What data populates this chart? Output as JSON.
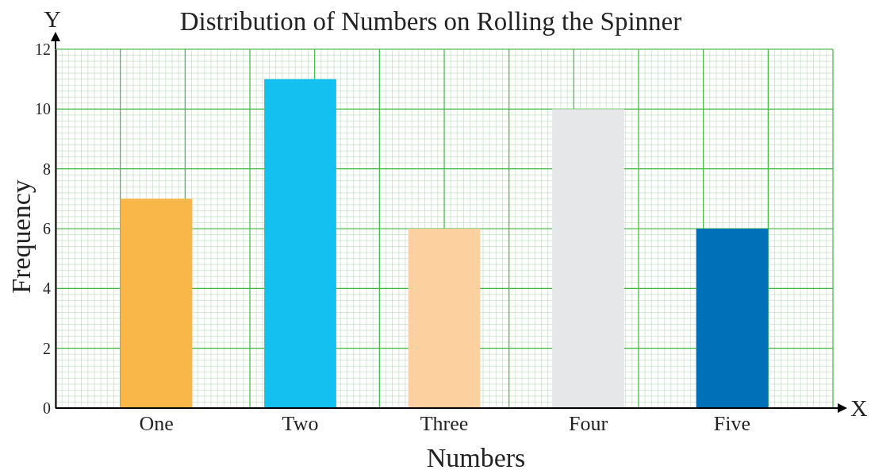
{
  "chart_data": {
    "type": "bar",
    "title": "Distribution of Numbers on Rolling the Spinner",
    "xlabel": "Numbers",
    "ylabel": "Frequency",
    "categories": [
      "One",
      "Two",
      "Three",
      "Four",
      "Five"
    ],
    "values": [
      7,
      11,
      6,
      10,
      6
    ],
    "colors": [
      "#f9b74a",
      "#13c0ef",
      "#fdd09f",
      "#e6e7e8",
      "#0070b9"
    ],
    "ylim": [
      0,
      12
    ],
    "yticks": [
      0,
      2,
      4,
      6,
      8,
      10,
      12
    ],
    "grid": true,
    "annotations": [
      "X",
      "Y"
    ]
  }
}
